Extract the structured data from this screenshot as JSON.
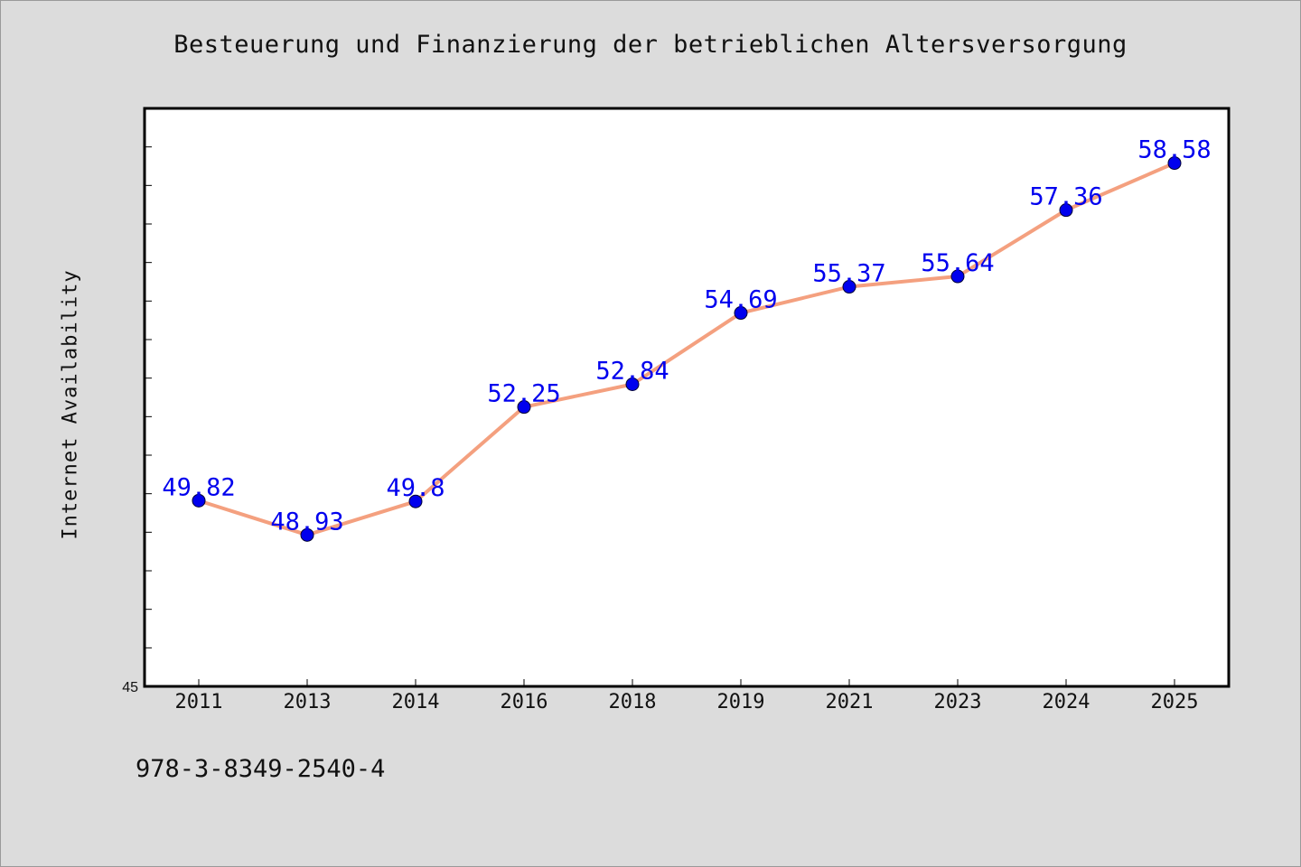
{
  "chart_data": {
    "type": "line",
    "title": "Besteuerung und Finanzierung der betrieblichen Altersversorgung",
    "xlabel": "",
    "ylabel": "Internet Availability",
    "categories": [
      "2011",
      "2013",
      "2014",
      "2016",
      "2018",
      "2019",
      "2021",
      "2023",
      "2024",
      "2025"
    ],
    "series": [
      {
        "values": [
          49.82,
          48.93,
          49.8,
          52.25,
          52.84,
          54.69,
          55.37,
          55.64,
          57.36,
          58.58
        ],
        "data_labels": [
          "49.82",
          "48.93",
          "49.8",
          "52.25",
          "52.84",
          "54.69",
          "55.37",
          "55.64",
          "57.36",
          "58.58"
        ],
        "line_color": "#f4a07f",
        "marker_color": "#0000ee",
        "label_color": "#0000ee"
      }
    ],
    "ylim": [
      45,
      60
    ],
    "y_tick_step": 1,
    "y_tick_labels": [
      "45"
    ],
    "grid": false,
    "legend": "none"
  },
  "footer_note": "978-3-8349-2540-4",
  "colors": {
    "background": "#dcdcdc",
    "plot_background": "#ffffff",
    "axis": "#000000"
  }
}
